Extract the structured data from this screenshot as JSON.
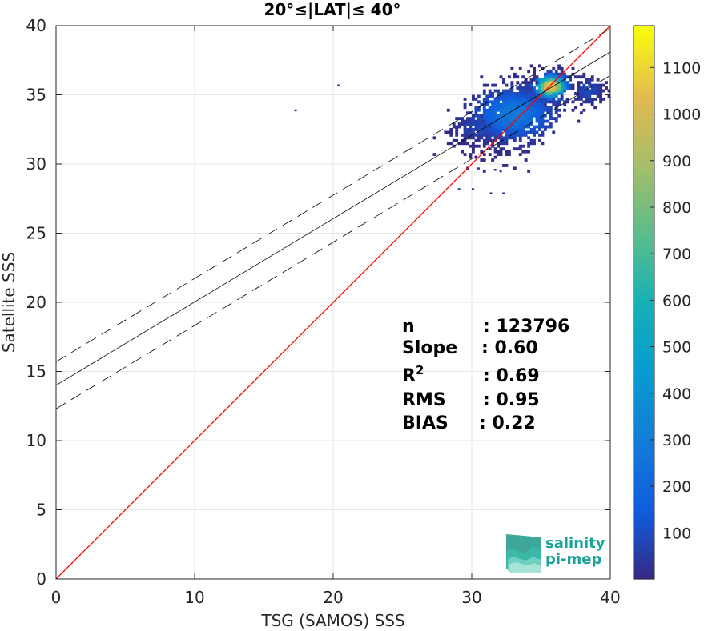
{
  "chart_data": {
    "type": "heatmap",
    "title": "20°≤|LAT|≤ 40°",
    "xlabel": "TSG (SAMOS) SSS",
    "ylabel": "Satellite SSS",
    "xlim": [
      0,
      40
    ],
    "ylim": [
      0,
      40
    ],
    "x_ticks": [
      "0",
      "10",
      "20",
      "30",
      "40"
    ],
    "y_ticks": [
      "0",
      "5",
      "10",
      "15",
      "20",
      "25",
      "30",
      "35",
      "40"
    ],
    "grid": true,
    "colorbar": {
      "range": [
        1,
        1190
      ],
      "ticks": [
        "100",
        "200",
        "300",
        "400",
        "500",
        "600",
        "700",
        "800",
        "900",
        "1000",
        "1100"
      ],
      "colormap": "parula"
    },
    "lines": [
      {
        "kind": "identity",
        "color": "#ff0000",
        "x": [
          0,
          40
        ],
        "y": [
          0,
          40
        ]
      },
      {
        "kind": "regression",
        "color": "#000000",
        "x": [
          0,
          40
        ],
        "y": [
          14.0,
          38.1
        ]
      },
      {
        "kind": "regression-upper",
        "color": "#000000",
        "dash": true,
        "x": [
          0,
          40
        ],
        "y": [
          15.7,
          39.8
        ]
      },
      {
        "kind": "regression-lower",
        "color": "#000000",
        "dash": true,
        "x": [
          0,
          40
        ],
        "y": [
          12.3,
          36.4
        ]
      }
    ],
    "density_clusters": [
      {
        "x": 33.0,
        "y": 33.6,
        "sx": 1.7,
        "sy": 1.05,
        "rot": 0.5,
        "n": 1400,
        "peak": 280
      },
      {
        "x": 35.7,
        "y": 35.6,
        "sx": 0.65,
        "sy": 0.45,
        "rot": 0.6,
        "n": 450,
        "peak": 1100
      },
      {
        "x": 38.4,
        "y": 35.3,
        "sx": 0.55,
        "sy": 0.5,
        "rot": 0.0,
        "n": 140,
        "peak": 90
      },
      {
        "x": 30.5,
        "y": 32.6,
        "sx": 1.0,
        "sy": 0.5,
        "rot": 0.2,
        "n": 160,
        "peak": 90
      }
    ],
    "stray_points": [
      {
        "x": 20.3,
        "y": 35.6
      },
      {
        "x": 17.2,
        "y": 33.8
      },
      {
        "x": 30.4,
        "y": 29.6
      },
      {
        "x": 31.6,
        "y": 29.5
      },
      {
        "x": 32.0,
        "y": 29.4
      },
      {
        "x": 29.0,
        "y": 28.1
      },
      {
        "x": 30.0,
        "y": 28.1
      },
      {
        "x": 31.3,
        "y": 27.8
      },
      {
        "x": 32.2,
        "y": 27.8
      }
    ],
    "stats": [
      {
        "label": "n",
        "value": ": 123796"
      },
      {
        "label": "Slope",
        "value": ": 0.60"
      },
      {
        "label": "R",
        "sup": "2",
        "value": ": 0.69"
      },
      {
        "label": "RMS",
        "value": ": 0.95"
      },
      {
        "label": "BIAS",
        "value": ": 0.22"
      }
    ]
  },
  "logo": {
    "line1": "salinity",
    "line2": "pi-mep"
  },
  "colors": {
    "identity": "#ff0000",
    "regression": "#000000",
    "logo_text": "#1aa39a",
    "axes": "#262626",
    "grid": "#e6e6e6"
  }
}
